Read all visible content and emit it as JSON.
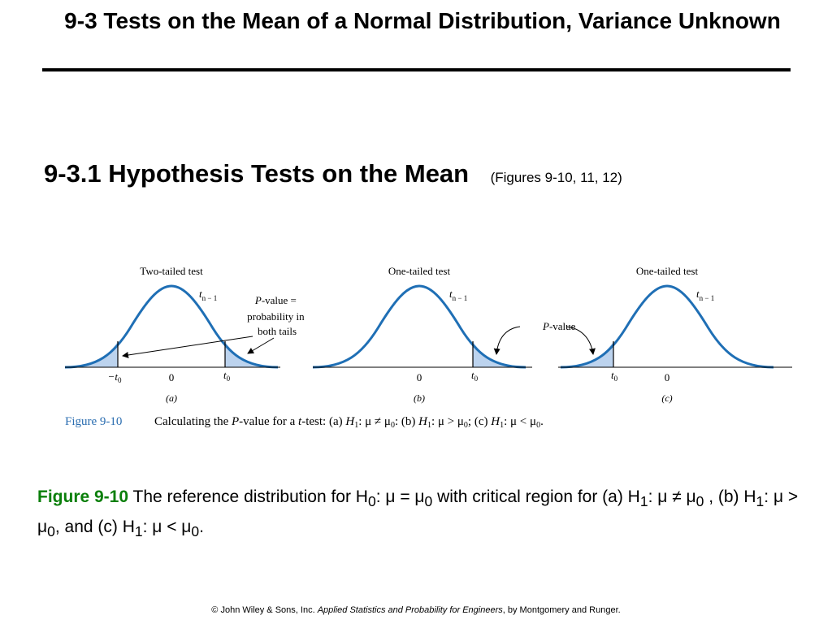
{
  "slide": {
    "title": "9-3 Tests on the Mean of a Normal Distribution, Variance Unknown",
    "section_heading": "9-3.1 Hypothesis Tests on the Mean",
    "section_subtitle": "(Figures 9-10, 11, 12)"
  },
  "figure": {
    "panels": [
      {
        "heading": "Two-tailed test",
        "dist_main": "t",
        "dist_sub": "n − 1",
        "left_tick": "−t",
        "left_tick_sub": "0",
        "zero_tick": "0",
        "right_tick": "t",
        "right_tick_sub": "0",
        "letter": "(a)",
        "callout_main": "-value =",
        "callout_italic": "P",
        "callout_line2": "probability in",
        "callout_line3": "both tails"
      },
      {
        "heading": "One-tailed test",
        "dist_main": "t",
        "dist_sub": "n − 1",
        "zero_tick": "0",
        "right_tick": "t",
        "right_tick_sub": "0",
        "letter": "(b)"
      },
      {
        "heading": "One-tailed test",
        "dist_main": "t",
        "dist_sub": "n − 1",
        "left_tick": "t",
        "left_tick_sub": "0",
        "zero_tick": "0",
        "letter": "(c)"
      }
    ],
    "pvalue_italic": "P",
    "pvalue_label": "-value",
    "caption_label": "Figure 9-10",
    "caption_text": {
      "p1": "Calculating the ",
      "p2": "P",
      "p3": "-value for a ",
      "p4": "t",
      "p5": "-test: (a) ",
      "p6": "H",
      "p7": "1",
      "p8": ": μ ≠ μ",
      "p9": "0",
      "p10": ": (b) ",
      "p11": "H",
      "p12": "1",
      "p13": ": μ > μ",
      "p14": "0",
      "p15": "; (c) ",
      "p16": "H",
      "p17": "1",
      "p18": ": μ < μ",
      "p19": "0",
      "p20": "."
    }
  },
  "caption": {
    "label": "Figure 9-10",
    "s1": " The reference distribution for H",
    "s2": "0",
    "s3": ": μ = μ",
    "s4": "0",
    "s5": " with critical region for (a) H",
    "s6": "1",
    "s7": ": μ ≠ μ",
    "s8": "0",
    "s9": " , (b) H",
    "s10": "1",
    "s11": ": μ > μ",
    "s12": "0",
    "s13": ", and (c) H",
    "s14": "1",
    "s15": ": μ < μ",
    "s16": "0",
    "s17": "."
  },
  "footer": {
    "prefix": "© John Wiley & Sons, Inc.  ",
    "book": "Applied Statistics and Probability for Engineers",
    "suffix": ", by Montgomery and Runger."
  },
  "colors": {
    "curve": "#1f6fb5",
    "tail_fill": "#bcd3ee",
    "caption_label": "#0a7f0a",
    "figure_label": "#2a6db0"
  }
}
